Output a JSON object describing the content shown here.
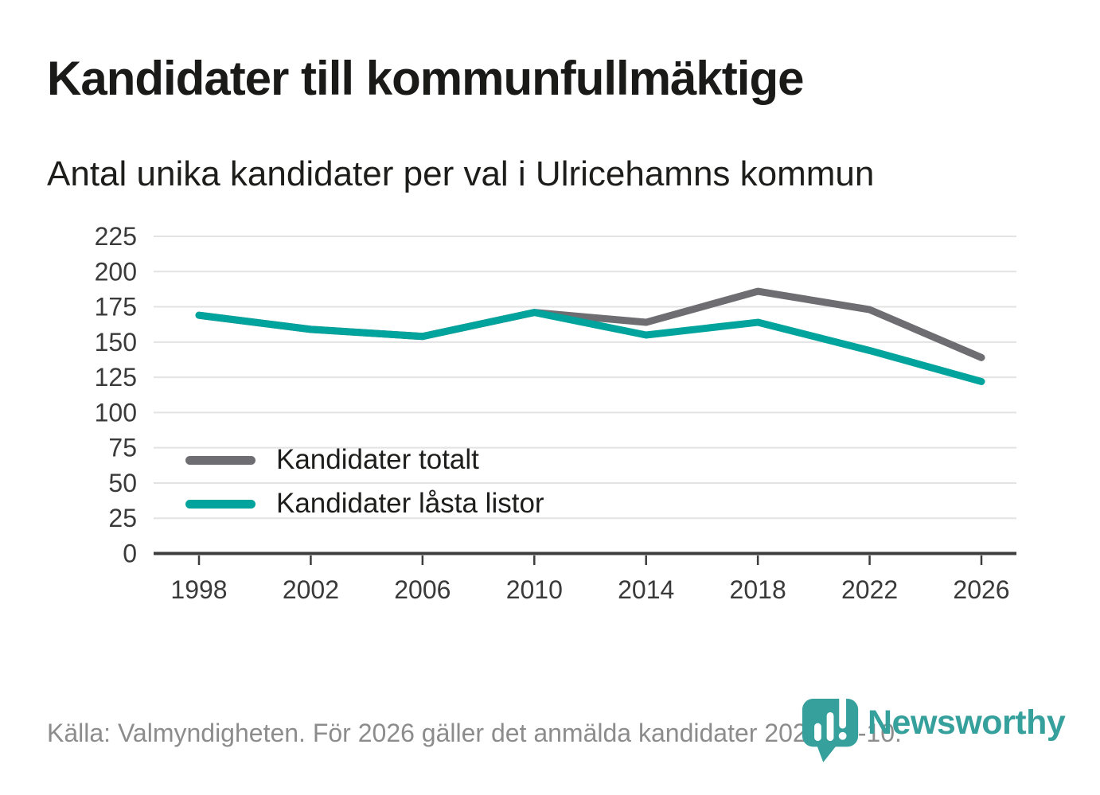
{
  "header": {
    "title": "Kandidater till kommunfullmäktige",
    "subtitle": "Antal unika kandidater per val i Ulricehamns kommun"
  },
  "chart_data": {
    "type": "line",
    "title": "Kandidater till kommunfullmäktige",
    "subtitle": "Antal unika kandidater per val i Ulricehamns kommun",
    "categories": [
      "1998",
      "2002",
      "2006",
      "2010",
      "2014",
      "2018",
      "2022",
      "2026"
    ],
    "series": [
      {
        "name": "Kandidater totalt",
        "color": "#6d6d72",
        "values": [
          169,
          159,
          154,
          171,
          164,
          186,
          173,
          139
        ]
      },
      {
        "name": "Kandidater låsta listor",
        "color": "#00a49c",
        "values": [
          169,
          159,
          154,
          171,
          155,
          164,
          144,
          122
        ]
      }
    ],
    "xlabel": "",
    "ylabel": "",
    "ylim": [
      0,
      225
    ],
    "yticks": [
      0,
      25,
      50,
      75,
      100,
      125,
      150,
      175,
      200,
      225
    ],
    "grid": "horizontal",
    "legend_position": "inside-bottom-left"
  },
  "footer": {
    "source": "Källa: Valmyndigheten. För 2026 gäller det anmälda kandidater 2026-04-10.",
    "brand": "Newsworthy"
  },
  "colors": {
    "accent_teal": "#00a49c",
    "series_gray": "#6d6d72",
    "logo_teal": "#35a09c",
    "grid": "#e3e3e3",
    "axis": "#3d3d3d",
    "tick_label": "#3a3a3a",
    "source_text": "#8c8c8c"
  }
}
